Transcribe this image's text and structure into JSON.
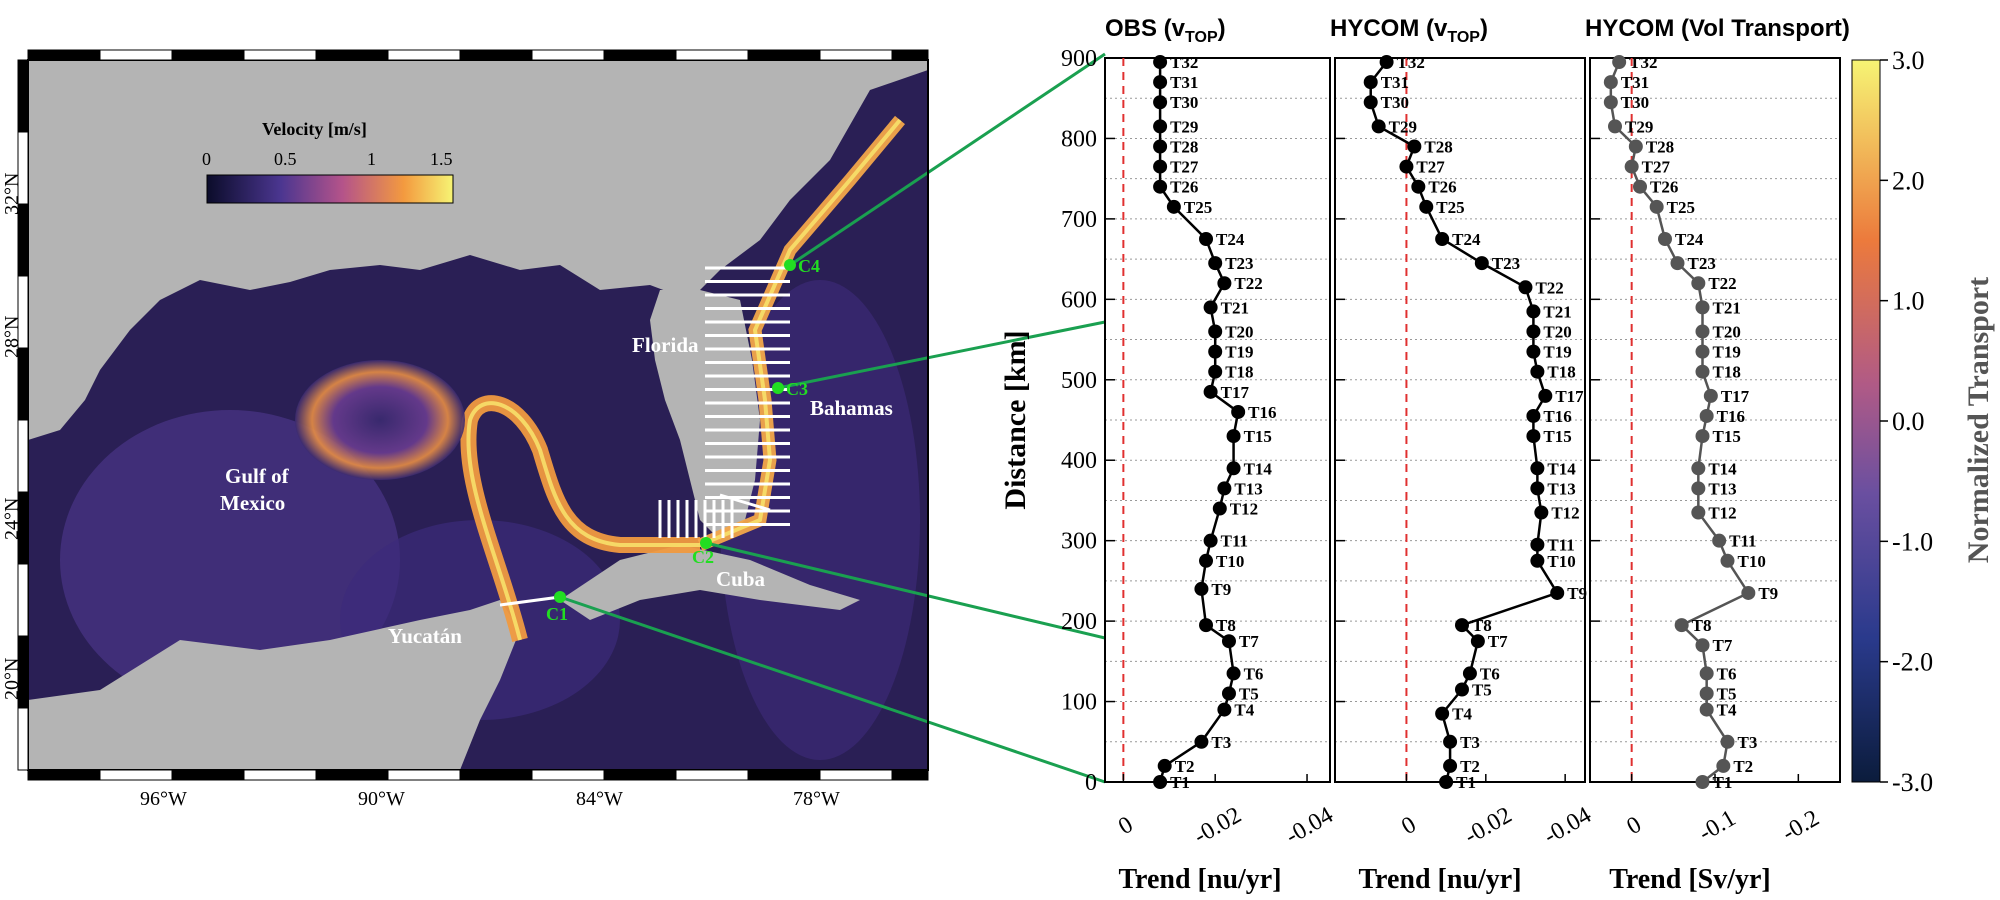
{
  "map": {
    "colorbar_title": "Velocity [m/s]",
    "colorbar_ticks": [
      "0",
      "0.5",
      "1",
      "1.5"
    ],
    "lat_labels": [
      "32°N",
      "28°N",
      "24°N",
      "20°N"
    ],
    "lon_labels": [
      "96°W",
      "90°W",
      "84°W",
      "78°W"
    ],
    "place_labels": [
      "Florida",
      "Bahamas",
      "Gulf of",
      "Mexico",
      "Cuba",
      "Yucatán"
    ],
    "stations": [
      "C1",
      "C2",
      "C3",
      "C4"
    ],
    "colors": {
      "land": "#b4b4b4",
      "ocean_low": "#1b1638",
      "ocean_mid": "#5a3c8c",
      "current": "#f5a03c",
      "station": "#22dd22",
      "connector": "#1aa050"
    }
  },
  "panels": {
    "obs_title": "OBS (v",
    "obs_sub": "TOP",
    "obs_close": ")",
    "hycom_v_title": "HYCOM (v",
    "hycom_v_sub": "TOP",
    "hycom_v_close": ")",
    "hycom_vt_title": "HYCOM (Vol Transport)",
    "ylabel": "Distance [km]",
    "xlabel_obs": "Trend [nu/yr]",
    "xlabel_hv": "Trend [nu/yr]",
    "xlabel_vt": "Trend [Sv/yr]",
    "colorbar_label": "Normalized Transport",
    "colorbar_ticks": [
      "3.0",
      "2.0",
      "1.0",
      "0.0",
      "-1.0",
      "-2.0",
      "-3.0"
    ]
  },
  "chart_data": [
    {
      "type": "line",
      "title": "OBS (vTOP)",
      "xlabel": "Trend [nu/yr]",
      "ylabel": "Distance [km]",
      "xlim": [
        0.004,
        -0.045
      ],
      "ylim": [
        0,
        900
      ],
      "xticks": [
        "0",
        "-0.02",
        "-0.04"
      ],
      "yticks": [
        "0",
        "100",
        "200",
        "300",
        "400",
        "500",
        "600",
        "700",
        "800",
        "900"
      ],
      "reference_line": 0,
      "grid": true,
      "series": [
        {
          "labels": [
            "T1",
            "T2",
            "T3",
            "T4",
            "T5",
            "T6",
            "T7",
            "T8",
            "T9",
            "T10",
            "T11",
            "T12",
            "T13",
            "T14",
            "T15",
            "T16",
            "T17",
            "T18",
            "T19",
            "T20",
            "T21",
            "T22",
            "T23",
            "T24",
            "T25",
            "T26",
            "T27",
            "T28",
            "T29",
            "T30",
            "T31",
            "T32"
          ],
          "x": [
            -0.008,
            -0.009,
            -0.017,
            -0.022,
            -0.023,
            -0.024,
            -0.023,
            -0.018,
            -0.017,
            -0.018,
            -0.019,
            -0.021,
            -0.022,
            -0.024,
            -0.024,
            -0.025,
            -0.019,
            -0.02,
            -0.02,
            -0.02,
            -0.019,
            -0.022,
            -0.02,
            -0.018,
            -0.011,
            -0.008,
            -0.008,
            -0.008,
            -0.008,
            -0.008,
            -0.008,
            -0.008
          ],
          "y": [
            0,
            20,
            50,
            90,
            110,
            135,
            175,
            195,
            240,
            275,
            300,
            340,
            365,
            390,
            430,
            460,
            485,
            510,
            535,
            560,
            590,
            620,
            645,
            675,
            715,
            740,
            765,
            790,
            815,
            845,
            870,
            895
          ]
        }
      ]
    },
    {
      "type": "line",
      "title": "HYCOM (vTOP)",
      "xlabel": "Trend [nu/yr]",
      "ylabel": "Distance [km]",
      "xlim": [
        0.018,
        -0.045
      ],
      "ylim": [
        0,
        900
      ],
      "xticks": [
        "0",
        "-0.02",
        "-0.04"
      ],
      "yticks": [
        "0",
        "100",
        "200",
        "300",
        "400",
        "500",
        "600",
        "700",
        "800",
        "900"
      ],
      "reference_line": 0,
      "grid": true,
      "series": [
        {
          "labels": [
            "T1",
            "T2",
            "T3",
            "T4",
            "T5",
            "T6",
            "T7",
            "T8",
            "T9",
            "T10",
            "T11",
            "T12",
            "T13",
            "T14",
            "T15",
            "T16",
            "T17",
            "T18",
            "T19",
            "T20",
            "T21",
            "T22",
            "T23",
            "T24",
            "T25",
            "T26",
            "T27",
            "T28",
            "T29",
            "T30",
            "T31",
            "T32"
          ],
          "x": [
            -0.01,
            -0.011,
            -0.011,
            -0.009,
            -0.014,
            -0.016,
            -0.018,
            -0.014,
            -0.038,
            -0.033,
            -0.033,
            -0.034,
            -0.033,
            -0.033,
            -0.032,
            -0.032,
            -0.035,
            -0.033,
            -0.032,
            -0.032,
            -0.032,
            -0.03,
            -0.019,
            -0.009,
            -0.005,
            -0.003,
            0.0,
            -0.002,
            0.007,
            0.009,
            0.009,
            0.005
          ],
          "y": [
            0,
            20,
            50,
            85,
            115,
            135,
            175,
            195,
            235,
            275,
            295,
            335,
            365,
            390,
            430,
            455,
            480,
            510,
            535,
            560,
            585,
            615,
            645,
            675,
            715,
            740,
            765,
            790,
            815,
            845,
            870,
            895
          ]
        }
      ]
    },
    {
      "type": "line",
      "title": "HYCOM (Vol Transport)",
      "xlabel": "Trend [Sv/yr]",
      "ylabel": "Distance [km]",
      "xlim": [
        0.05,
        -0.25
      ],
      "ylim": [
        0,
        900
      ],
      "xticks": [
        "0",
        "-0.1",
        "-0.2"
      ],
      "yticks": [
        "0",
        "100",
        "200",
        "300",
        "400",
        "500",
        "600",
        "700",
        "800",
        "900"
      ],
      "reference_line": 0,
      "grid": true,
      "series": [
        {
          "labels": [
            "T1",
            "T2",
            "T3",
            "T4",
            "T5",
            "T6",
            "T7",
            "T8",
            "T9",
            "T10",
            "T11",
            "T12",
            "T13",
            "T14",
            "T15",
            "T16",
            "T17",
            "T18",
            "T19",
            "T20",
            "T21",
            "T22",
            "T23",
            "T24",
            "T25",
            "T26",
            "T27",
            "T28",
            "T29",
            "T30",
            "T31",
            "T32"
          ],
          "x": [
            -0.085,
            -0.11,
            -0.115,
            -0.09,
            -0.09,
            -0.09,
            -0.085,
            -0.06,
            -0.14,
            -0.115,
            -0.105,
            -0.08,
            -0.08,
            -0.08,
            -0.085,
            -0.09,
            -0.095,
            -0.085,
            -0.085,
            -0.085,
            -0.085,
            -0.08,
            -0.055,
            -0.04,
            -0.03,
            -0.01,
            0.0,
            -0.005,
            0.02,
            0.025,
            0.025,
            0.015
          ],
          "y": [
            0,
            20,
            50,
            90,
            110,
            135,
            170,
            195,
            235,
            275,
            300,
            335,
            365,
            390,
            430,
            455,
            480,
            510,
            535,
            560,
            590,
            620,
            645,
            675,
            715,
            740,
            765,
            790,
            815,
            845,
            870,
            895
          ]
        }
      ]
    }
  ]
}
